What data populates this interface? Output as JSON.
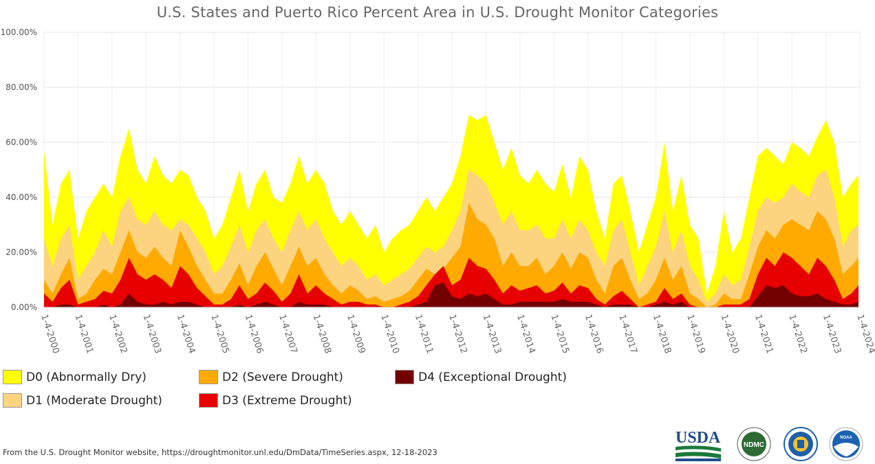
{
  "chart_data": {
    "type": "area",
    "stacked": false,
    "title": "U.S. States and Puerto Rico Percent Area in U.S. Drought Monitor Categories",
    "xlabel": "",
    "ylabel": "",
    "ylim": [
      0,
      100
    ],
    "y_ticks": [
      "0.00%",
      "20.00%",
      "40.00%",
      "60.00%",
      "80.00%",
      "100.00%"
    ],
    "x_range": [
      2000.0,
      2024.0
    ],
    "x_ticks": [
      "1-4-2000",
      "1-4-2001",
      "1-4-2002",
      "1-4-2003",
      "1-4-2004",
      "1-4-2005",
      "1-4-2006",
      "1-4-2007",
      "1-4-2008",
      "1-4-2009",
      "1-4-2010",
      "1-4-2011",
      "1-4-2012",
      "1-4-2013",
      "1-4-2014",
      "1-4-2015",
      "1-4-2016",
      "1-4-2017",
      "1-4-2018",
      "1-4-2019",
      "1-4-2020",
      "1-4-2021",
      "1-4-2022",
      "1-4-2023",
      "1-4-2024"
    ],
    "grid": true,
    "legend_position": "bottom-left",
    "x": [
      2000.0,
      2000.25,
      2000.5,
      2000.75,
      2001.0,
      2001.25,
      2001.5,
      2001.75,
      2002.0,
      2002.25,
      2002.5,
      2002.75,
      2003.0,
      2003.25,
      2003.5,
      2003.75,
      2004.0,
      2004.25,
      2004.5,
      2004.75,
      2005.0,
      2005.25,
      2005.5,
      2005.75,
      2006.0,
      2006.25,
      2006.5,
      2006.75,
      2007.0,
      2007.25,
      2007.5,
      2007.75,
      2008.0,
      2008.25,
      2008.5,
      2008.75,
      2009.0,
      2009.25,
      2009.5,
      2009.75,
      2010.0,
      2010.25,
      2010.5,
      2010.75,
      2011.0,
      2011.25,
      2011.5,
      2011.75,
      2012.0,
      2012.25,
      2012.5,
      2012.75,
      2013.0,
      2013.25,
      2013.5,
      2013.75,
      2014.0,
      2014.25,
      2014.5,
      2014.75,
      2015.0,
      2015.25,
      2015.5,
      2015.75,
      2016.0,
      2016.25,
      2016.5,
      2016.75,
      2017.0,
      2017.25,
      2017.5,
      2017.75,
      2018.0,
      2018.25,
      2018.5,
      2018.75,
      2019.0,
      2019.25,
      2019.5,
      2019.75,
      2020.0,
      2020.25,
      2020.5,
      2020.75,
      2021.0,
      2021.25,
      2021.5,
      2021.75,
      2022.0,
      2022.25,
      2022.5,
      2022.75,
      2023.0,
      2023.25,
      2023.5,
      2023.75,
      2023.96
    ],
    "series": [
      {
        "name": "D0 (Abnormally Dry)",
        "color": "#ffff00",
        "values": [
          57,
          30,
          45,
          50,
          25,
          35,
          40,
          45,
          40,
          55,
          65,
          50,
          45,
          55,
          48,
          45,
          50,
          48,
          40,
          35,
          25,
          30,
          40,
          50,
          35,
          45,
          50,
          40,
          38,
          45,
          55,
          45,
          50,
          45,
          35,
          30,
          35,
          30,
          25,
          30,
          20,
          25,
          28,
          30,
          35,
          40,
          35,
          40,
          45,
          55,
          70,
          68,
          70,
          60,
          50,
          58,
          48,
          45,
          50,
          45,
          42,
          52,
          40,
          55,
          50,
          35,
          25,
          45,
          48,
          35,
          20,
          30,
          40,
          60,
          35,
          48,
          30,
          25,
          5,
          15,
          35,
          20,
          25,
          40,
          55,
          58,
          55,
          52,
          60,
          58,
          55,
          62,
          68,
          60,
          40,
          45,
          48
        ]
      },
      {
        "name": "D1 (Moderate Drought)",
        "color": "#fcd37f",
        "values": [
          25,
          15,
          25,
          30,
          10,
          15,
          20,
          28,
          22,
          35,
          40,
          32,
          30,
          35,
          30,
          28,
          32,
          30,
          25,
          20,
          12,
          15,
          22,
          30,
          20,
          28,
          32,
          25,
          20,
          28,
          35,
          28,
          32,
          25,
          20,
          15,
          18,
          15,
          10,
          12,
          8,
          10,
          12,
          14,
          18,
          22,
          20,
          22,
          28,
          35,
          50,
          48,
          45,
          38,
          30,
          35,
          28,
          28,
          30,
          25,
          25,
          32,
          25,
          32,
          28,
          20,
          15,
          28,
          32,
          20,
          8,
          15,
          22,
          35,
          20,
          28,
          15,
          10,
          2,
          5,
          12,
          8,
          10,
          22,
          35,
          40,
          38,
          40,
          45,
          42,
          40,
          48,
          50,
          40,
          22,
          28,
          30
        ]
      },
      {
        "name": "D2 (Severe Drought)",
        "color": "#ffaa00",
        "values": [
          10,
          5,
          12,
          18,
          3,
          5,
          10,
          14,
          12,
          20,
          28,
          20,
          18,
          22,
          18,
          15,
          28,
          22,
          15,
          10,
          5,
          5,
          10,
          16,
          8,
          15,
          20,
          14,
          8,
          15,
          22,
          15,
          18,
          12,
          8,
          5,
          8,
          6,
          3,
          4,
          2,
          3,
          4,
          6,
          10,
          14,
          12,
          14,
          18,
          22,
          38,
          32,
          30,
          25,
          15,
          20,
          15,
          15,
          18,
          12,
          15,
          20,
          14,
          20,
          18,
          10,
          5,
          15,
          18,
          10,
          3,
          5,
          10,
          18,
          10,
          15,
          5,
          3,
          0,
          1,
          5,
          3,
          3,
          12,
          22,
          28,
          25,
          30,
          32,
          30,
          28,
          35,
          32,
          25,
          12,
          15,
          18
        ]
      },
      {
        "name": "D3 (Extreme Drought)",
        "color": "#e60000",
        "values": [
          5,
          2,
          7,
          10,
          1,
          2,
          3,
          6,
          5,
          10,
          18,
          12,
          10,
          12,
          10,
          7,
          15,
          12,
          7,
          4,
          1,
          1,
          3,
          8,
          3,
          5,
          9,
          6,
          2,
          5,
          12,
          5,
          8,
          5,
          3,
          1,
          2,
          2,
          1,
          1,
          0,
          0,
          1,
          2,
          4,
          8,
          12,
          15,
          8,
          10,
          18,
          15,
          14,
          10,
          5,
          8,
          6,
          7,
          8,
          5,
          6,
          9,
          5,
          8,
          7,
          3,
          1,
          4,
          6,
          3,
          0,
          1,
          2,
          7,
          3,
          5,
          1,
          0,
          0,
          0,
          1,
          1,
          1,
          3,
          12,
          18,
          15,
          20,
          18,
          15,
          12,
          18,
          15,
          10,
          3,
          5,
          8
        ]
      },
      {
        "name": "D4 (Exceptional Drought)",
        "color": "#730000",
        "values": [
          0,
          0,
          1,
          1,
          0,
          0,
          0,
          1,
          0,
          1,
          5,
          2,
          1,
          1,
          2,
          1,
          2,
          2,
          1,
          0,
          0,
          0,
          0,
          1,
          0,
          1,
          2,
          1,
          0,
          0,
          2,
          1,
          1,
          1,
          0,
          0,
          0,
          0,
          0,
          0,
          0,
          0,
          0,
          0,
          1,
          2,
          8,
          9,
          4,
          3,
          5,
          4,
          5,
          3,
          1,
          1,
          2,
          2,
          2,
          2,
          2,
          3,
          2,
          2,
          2,
          1,
          0,
          1,
          1,
          1,
          0,
          0,
          1,
          2,
          1,
          2,
          0,
          0,
          0,
          0,
          0,
          0,
          0,
          0,
          4,
          8,
          7,
          8,
          5,
          4,
          4,
          5,
          3,
          2,
          1,
          1,
          2
        ]
      }
    ]
  },
  "legend": {
    "d0": {
      "label": "D0 (Abnormally Dry)",
      "color": "#ffff00"
    },
    "d1": {
      "label": "D1 (Moderate Drought)",
      "color": "#fcd37f"
    },
    "d2": {
      "label": "D2 (Severe Drought)",
      "color": "#ffaa00"
    },
    "d3": {
      "label": "D3 (Extreme Drought)",
      "color": "#e60000"
    },
    "d4": {
      "label": "D4 (Exceptional Drought)",
      "color": "#730000"
    }
  },
  "footer": {
    "source": "From the U.S. Drought Monitor website, https://droughtmonitor.unl.edu/DmData/TimeSeries.aspx, 12-18-2023"
  },
  "logos": {
    "usda": "USDA",
    "ndmc": "NDMC",
    "noaa": "NOAA"
  }
}
